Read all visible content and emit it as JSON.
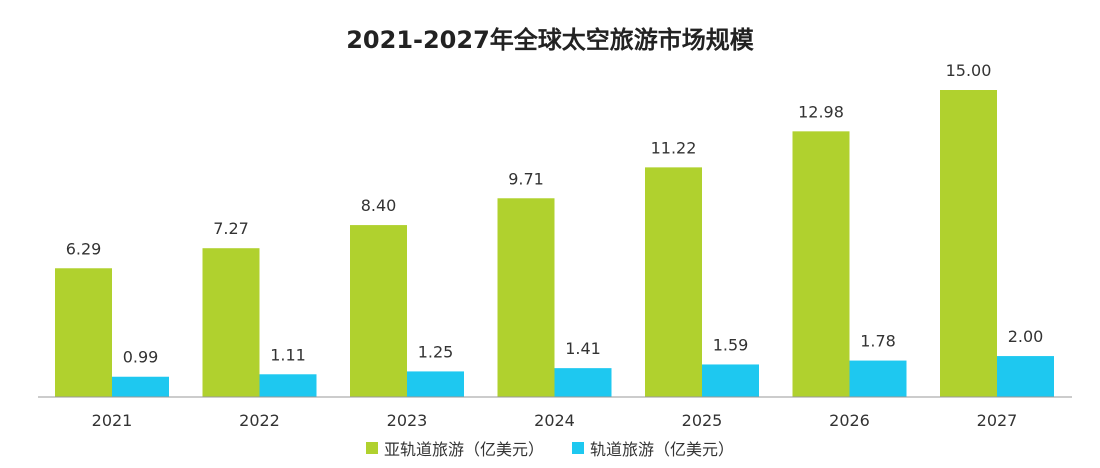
{
  "chart_data": {
    "type": "bar",
    "title": "2021-2027年全球太空旅游市场规模",
    "categories": [
      "2021",
      "2022",
      "2023",
      "2024",
      "2025",
      "2026",
      "2027"
    ],
    "series": [
      {
        "name": "亚轨道旅游（亿美元）",
        "color": "#b0d12e",
        "values": [
          6.29,
          7.27,
          8.4,
          9.71,
          11.22,
          12.98,
          15.0
        ],
        "labels": [
          "6.29",
          "7.27",
          "8.40",
          "9.71",
          "11.22",
          "12.98",
          "15.00"
        ]
      },
      {
        "name": "轨道旅游（亿美元）",
        "color": "#1ec8f0",
        "values": [
          0.99,
          1.11,
          1.25,
          1.41,
          1.59,
          1.78,
          2.0
        ],
        "labels": [
          "0.99",
          "1.11",
          "1.25",
          "1.41",
          "1.59",
          "1.78",
          "2.00"
        ]
      }
    ],
    "ylim": [
      0,
      15.0
    ],
    "grid": false,
    "legend_position": "bottom"
  }
}
